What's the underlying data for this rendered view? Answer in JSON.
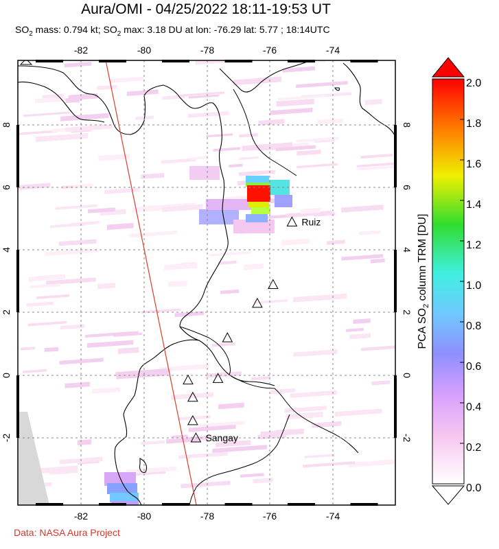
{
  "header": {
    "title": "Aura/OMI - 04/25/2022 18:11-19:53 UT",
    "subtitle_prefix": "SO",
    "subtitle_part2": " mass: 0.794 kt; SO",
    "subtitle_part3": " max: 3.18 DU at lon: -76.29 lat: 5.77 ; 18:14UTC",
    "subscript": "2"
  },
  "footer": {
    "credit": "Data: NASA Aura Project"
  },
  "map": {
    "lon_ticks": [
      "-82",
      "-80",
      "-78",
      "-76",
      "-74"
    ],
    "lat_ticks": [
      "8",
      "6",
      "4",
      "2",
      "0",
      "-2"
    ],
    "volcanoes": [
      {
        "name": "Ruiz",
        "lon": -75.3,
        "lat": 4.9
      },
      {
        "name": "",
        "lon": -75.9,
        "lat": 2.9
      },
      {
        "name": "",
        "lon": -76.4,
        "lat": 2.3
      },
      {
        "name": "",
        "lon": -77.35,
        "lat": 1.2
      },
      {
        "name": "",
        "lon": -77.65,
        "lat": -0.1
      },
      {
        "name": "",
        "lon": -78.6,
        "lat": -0.15
      },
      {
        "name": "",
        "lon": -78.45,
        "lat": -0.7
      },
      {
        "name": "",
        "lon": -78.45,
        "lat": -1.45
      },
      {
        "name": "Sangay",
        "lon": -78.35,
        "lat": -2.0
      }
    ],
    "max_point": {
      "lon": -76.29,
      "lat": 5.77
    }
  },
  "colorbar": {
    "title_prefix": "PCA SO",
    "title_sub": "2",
    "title_suffix": " column TRM [DU]",
    "ticks": [
      "2.0",
      "1.8",
      "1.6",
      "1.4",
      "1.2",
      "1.0",
      "0.8",
      "0.6",
      "0.4",
      "0.2",
      "0.0"
    ],
    "colors": [
      "#ff0000",
      "#ff8a00",
      "#e8e800",
      "#22dd22",
      "#33e6c8",
      "#66ccff",
      "#8899ff",
      "#cc99ff",
      "#f0b8f0",
      "#fff5f5"
    ]
  }
}
